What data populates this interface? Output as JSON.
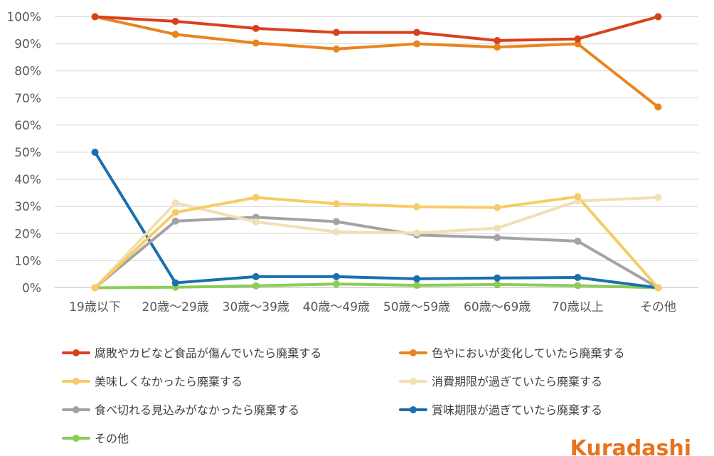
{
  "brand": {
    "name": "Kuradashi",
    "color": "#e8731f"
  },
  "chart_data": {
    "type": "line",
    "title": "",
    "xlabel": "",
    "ylabel": "",
    "ylim": [
      0,
      100
    ],
    "yticks": [
      0,
      10,
      20,
      30,
      40,
      50,
      60,
      70,
      80,
      90,
      100
    ],
    "ytick_labels": [
      "0%",
      "10%",
      "20%",
      "30%",
      "40%",
      "50%",
      "60%",
      "70%",
      "80%",
      "90%",
      "100%"
    ],
    "grid": true,
    "legend_position": "bottom",
    "categories": [
      "19歳以下",
      "20歳～29歳",
      "30歳～39歳",
      "40歳～49歳",
      "50歳～59歳",
      "60歳～69歳",
      "70歳以上",
      "その他"
    ],
    "series": [
      {
        "name": "腐敗やカビなど食品が傷んでいたら廃棄する",
        "color": "#d9401c",
        "values": [
          100,
          98.3,
          95.7,
          94.2,
          94.2,
          91.2,
          91.8,
          100
        ]
      },
      {
        "name": "色やにおいが変化していたら廃棄する",
        "color": "#e8851e",
        "values": [
          100,
          93.5,
          90.3,
          88.1,
          90.0,
          88.8,
          90.0,
          66.7
        ]
      },
      {
        "name": "美味しくなかったら廃棄する",
        "color": "#f7cc66",
        "values": [
          0,
          27.8,
          33.3,
          31.0,
          29.9,
          29.6,
          33.6,
          0
        ]
      },
      {
        "name": "消費期限が過ぎていたら廃棄する",
        "color": "#f2dfb3",
        "values": [
          0,
          31.3,
          24.3,
          20.6,
          20.2,
          22.0,
          32.0,
          33.3
        ]
      },
      {
        "name": "食べ切れる見込みがなかったら廃棄する",
        "color": "#a3a3a3",
        "values": [
          0,
          24.6,
          26.0,
          24.4,
          19.5,
          18.5,
          17.2,
          0
        ]
      },
      {
        "name": "賞味期限が過ぎていたら廃棄する",
        "color": "#1a6fb1",
        "values": [
          50,
          1.8,
          4.1,
          4.1,
          3.3,
          3.6,
          3.8,
          0
        ]
      },
      {
        "name": "その他",
        "color": "#8ccc55",
        "values": [
          0,
          0.2,
          0.7,
          1.4,
          0.9,
          1.2,
          0.8,
          0
        ]
      }
    ]
  }
}
